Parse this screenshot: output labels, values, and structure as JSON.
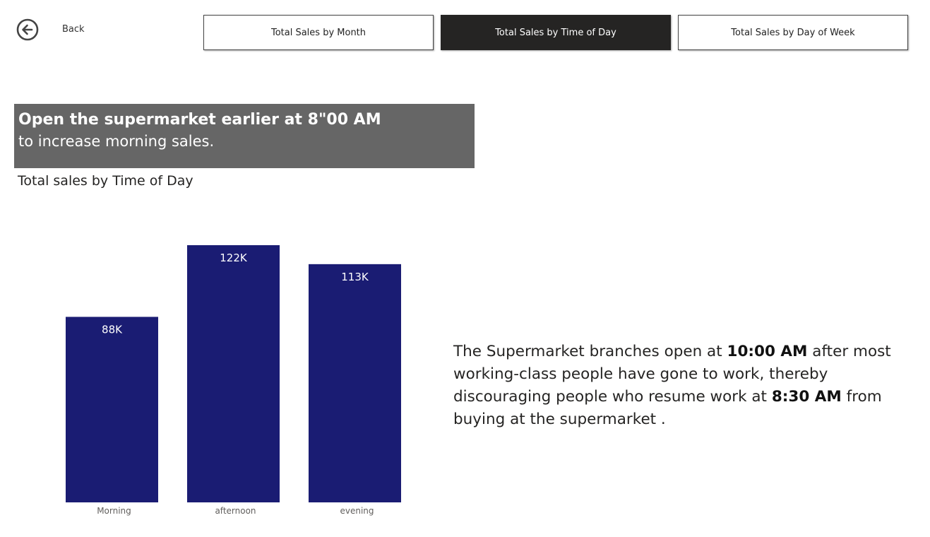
{
  "nav": {
    "back_label": "Back",
    "buttons": [
      {
        "label": "Total Sales by Month",
        "active": false
      },
      {
        "label": "Total Sales by Time of Day",
        "active": true
      },
      {
        "label": "Total Sales by Day of Week",
        "active": false
      }
    ]
  },
  "banner": {
    "title": "Open the supermarket earlier at 8\"00 AM",
    "subtitle": "to increase morning sales."
  },
  "note": {
    "part1": "The Supermarket branches open at ",
    "bold1": "10:00 AM",
    "part2": " after most working-class people have gone to work, thereby discouraging people who resume work at ",
    "bold2": "8:30 AM",
    "part3": " from buying at the supermarket ."
  },
  "colors": {
    "bar": "#1a1c73",
    "active_button": "#252423",
    "banner": "#666666"
  },
  "chart_data": {
    "type": "bar",
    "title": "Total sales by Time of Day",
    "categories": [
      "Morning",
      "afternoon",
      "evening"
    ],
    "values": [
      88000,
      122000,
      113000
    ],
    "data_labels": [
      "88K",
      "122K",
      "113K"
    ],
    "ylim": [
      0,
      122000
    ],
    "grid": false,
    "legend": "none"
  }
}
